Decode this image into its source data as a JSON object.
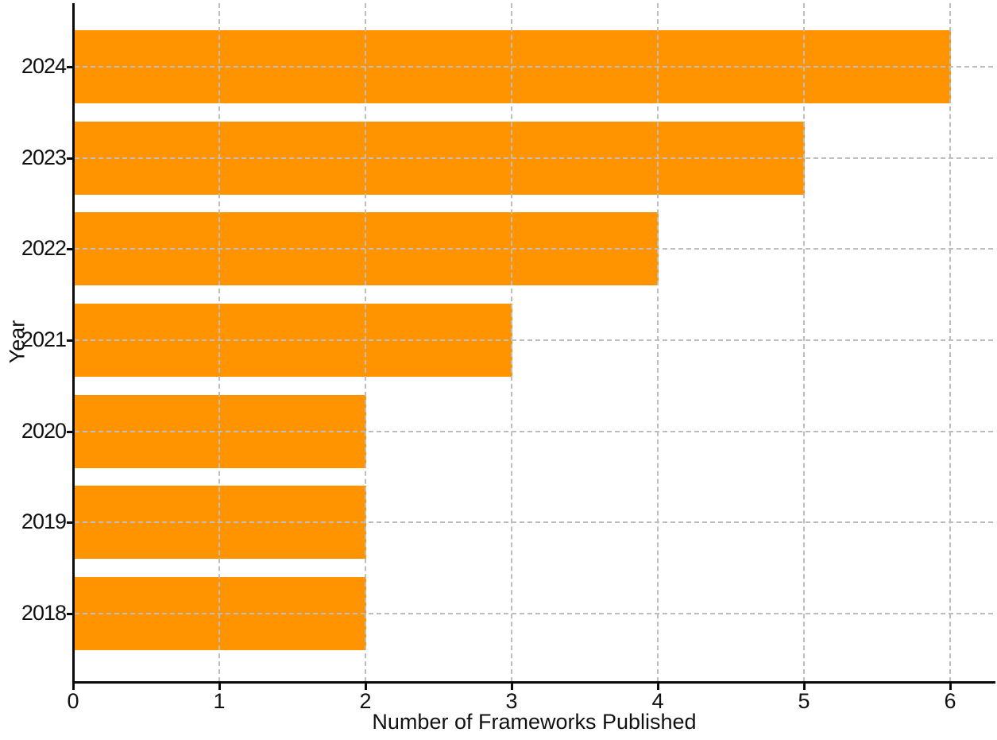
{
  "chart_data": {
    "type": "bar",
    "orientation": "horizontal",
    "categories": [
      "2024",
      "2023",
      "2022",
      "2021",
      "2020",
      "2019",
      "2018"
    ],
    "values": [
      6,
      5,
      4,
      3,
      2,
      2,
      2
    ],
    "title": "",
    "xlabel": "Number of Frameworks Published",
    "ylabel": "Year",
    "x_ticks": [
      "0",
      "1",
      "2",
      "3",
      "4",
      "5",
      "6"
    ],
    "xlim": [
      0,
      6.3
    ],
    "grid": "both-axes, dashed, drawn above bars",
    "legend": "none",
    "colors": {
      "bar": "#FF9300",
      "grid": "#bdbdbd",
      "axis": "#0a0a0a",
      "text": "#111111",
      "background": "#ffffff"
    }
  }
}
